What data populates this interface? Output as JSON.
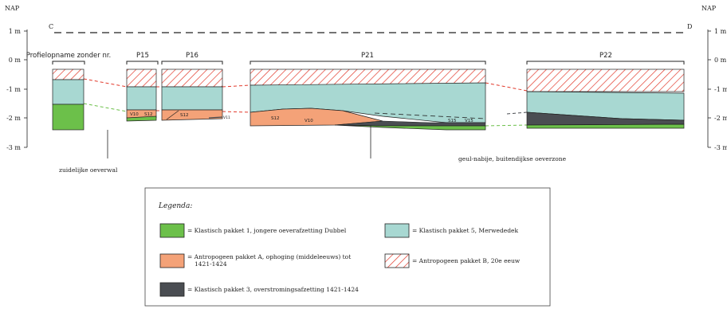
{
  "nap_left": "NAP",
  "nap_right": "NAP",
  "axis_left": [
    "1 m",
    "0 m",
    "-1 m",
    "-2 m",
    "-3 m"
  ],
  "axis_right": [
    "1 m",
    "0 m",
    "-1 m",
    "-2 m",
    "-3 m"
  ],
  "end_c": "C",
  "end_d": "D",
  "profiles": {
    "zonder": "Profielopname zonder nr.",
    "p15": "P15",
    "p16": "P16",
    "p21": "P21",
    "p22": "P22"
  },
  "sublabels": {
    "v10_p15": "V10",
    "s12_p15": "S12",
    "s12_p16": "S12",
    "v11_p16": "V11",
    "s12_p21": "S12",
    "v10_p21": "V10",
    "s15_p21": "S15",
    "v15_p21": "V15"
  },
  "captions": {
    "left": "zuidelijke oeverwal",
    "right": "geul-nabije, buitendijkse oeverzone"
  },
  "legend": {
    "title": "Legenda:",
    "items": [
      {
        "text": "= Klastisch pakket 1, jongere oeverafzetting Dubbel",
        "color": "#6cc04a"
      },
      {
        "text": "= Klastisch pakket 5, Merwededek",
        "color": "#a8d8d2"
      },
      {
        "text": "= Antropogeen pakket A, ophoging (middeleeuws) tot",
        "text2": "1421-1424",
        "color": "#f4a278"
      },
      {
        "text": "= Antropogeen pakket B, 20e eeuw",
        "color": "#e23a2c"
      },
      {
        "text": "= Klastisch pakket 3, overstromingsafzetting 1421-1424",
        "color": "#4a4d52"
      }
    ]
  }
}
